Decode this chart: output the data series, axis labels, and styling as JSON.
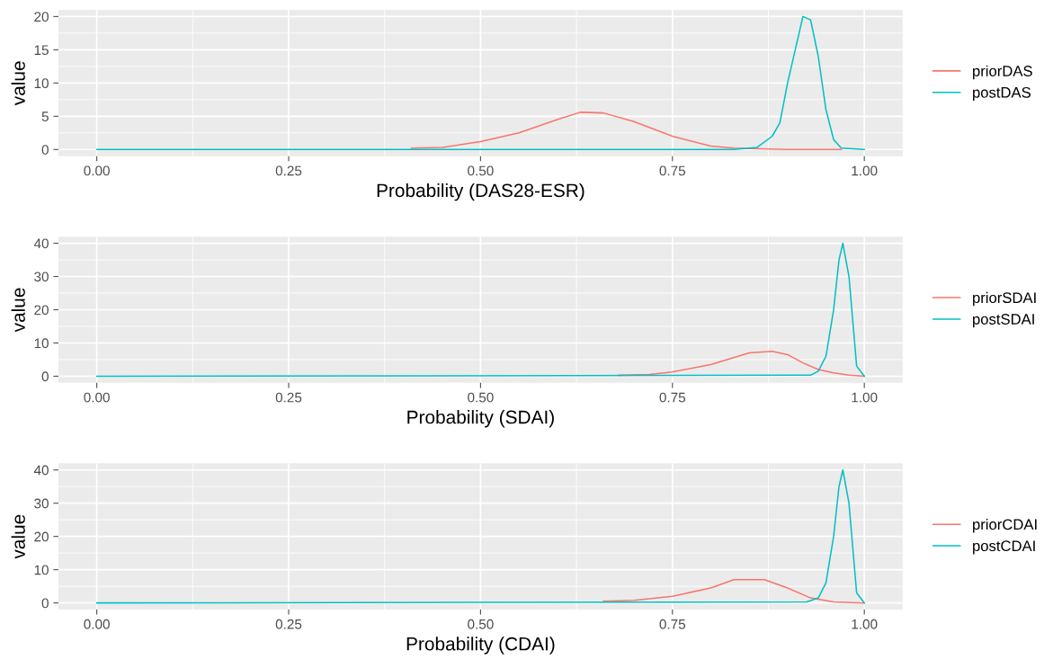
{
  "chart_data": [
    {
      "type": "line",
      "xlabel": "Probability (DAS28-ESR)",
      "ylabel": "value",
      "xlim": [
        -0.05,
        1.05
      ],
      "xticks": [
        {
          "value": 0,
          "label": "0.00"
        },
        {
          "value": 0.25,
          "label": "0.25"
        },
        {
          "value": 0.5,
          "label": "0.50"
        },
        {
          "value": 0.75,
          "label": "0.75"
        },
        {
          "value": 1,
          "label": "1.00"
        }
      ],
      "ylim": [
        -1,
        21
      ],
      "yticks": [
        0,
        5,
        10,
        15,
        20
      ],
      "grid": true,
      "legend": "right",
      "series": [
        {
          "name": "priorDAS",
          "color": "#f8766d",
          "x": [
            0.41,
            0.45,
            0.5,
            0.55,
            0.6,
            0.63,
            0.66,
            0.7,
            0.75,
            0.8,
            0.83,
            0.9,
            0.97
          ],
          "values": [
            0.2,
            0.3,
            1.2,
            2.5,
            4.5,
            5.6,
            5.5,
            4.2,
            2.0,
            0.5,
            0.2,
            0,
            0
          ]
        },
        {
          "name": "postDAS",
          "color": "#00bfc4",
          "x": [
            0,
            0.83,
            0.86,
            0.88,
            0.89,
            0.9,
            0.91,
            0.92,
            0.93,
            0.94,
            0.95,
            0.96,
            0.97,
            1.0
          ],
          "values": [
            0,
            0,
            0.3,
            2,
            4,
            10,
            15,
            20,
            19.5,
            14,
            6,
            1.5,
            0.2,
            0
          ]
        }
      ]
    },
    {
      "type": "line",
      "xlabel": "Probability (SDAI)",
      "ylabel": "value",
      "xlim": [
        -0.05,
        1.05
      ],
      "xticks": [
        {
          "value": 0,
          "label": "0.00"
        },
        {
          "value": 0.25,
          "label": "0.25"
        },
        {
          "value": 0.5,
          "label": "0.50"
        },
        {
          "value": 0.75,
          "label": "0.75"
        },
        {
          "value": 1,
          "label": "1.00"
        }
      ],
      "ylim": [
        -2,
        42
      ],
      "yticks": [
        0,
        10,
        20,
        30,
        40
      ],
      "grid": true,
      "legend": "right",
      "series": [
        {
          "name": "priorSDAI",
          "color": "#f8766d",
          "x": [
            0.68,
            0.72,
            0.75,
            0.8,
            0.85,
            0.88,
            0.9,
            0.92,
            0.94,
            0.96,
            0.98,
            1.0
          ],
          "values": [
            0.3,
            0.5,
            1.3,
            3.5,
            7,
            7.5,
            6.5,
            4,
            2,
            1,
            0.3,
            0
          ]
        },
        {
          "name": "postSDAI",
          "color": "#00bfc4",
          "x": [
            0,
            0.93,
            0.94,
            0.95,
            0.96,
            0.967,
            0.972,
            0.98,
            0.99,
            1.0
          ],
          "values": [
            0,
            0.3,
            1.5,
            6,
            20,
            35,
            40,
            30,
            3,
            0
          ]
        }
      ]
    },
    {
      "type": "line",
      "xlabel": "Probability (CDAI)",
      "ylabel": "value",
      "xlim": [
        -0.05,
        1.05
      ],
      "xticks": [
        {
          "value": 0,
          "label": "0.00"
        },
        {
          "value": 0.25,
          "label": "0.25"
        },
        {
          "value": 0.5,
          "label": "0.50"
        },
        {
          "value": 0.75,
          "label": "0.75"
        },
        {
          "value": 1,
          "label": "1.00"
        }
      ],
      "ylim": [
        -2,
        42
      ],
      "yticks": [
        0,
        10,
        20,
        30,
        40
      ],
      "grid": true,
      "legend": "right",
      "series": [
        {
          "name": "priorCDAI",
          "color": "#f8766d",
          "x": [
            0.66,
            0.7,
            0.75,
            0.8,
            0.83,
            0.87,
            0.9,
            0.93,
            0.96,
            1.0
          ],
          "values": [
            0.5,
            0.8,
            2,
            4.5,
            7,
            7,
            4.5,
            1.5,
            0.3,
            0
          ]
        },
        {
          "name": "postCDAI",
          "color": "#00bfc4",
          "x": [
            0,
            0.925,
            0.94,
            0.95,
            0.96,
            0.967,
            0.972,
            0.98,
            0.99,
            1.0
          ],
          "values": [
            0,
            0.3,
            1.5,
            6,
            20,
            35,
            40,
            30,
            3,
            0
          ]
        }
      ]
    }
  ]
}
